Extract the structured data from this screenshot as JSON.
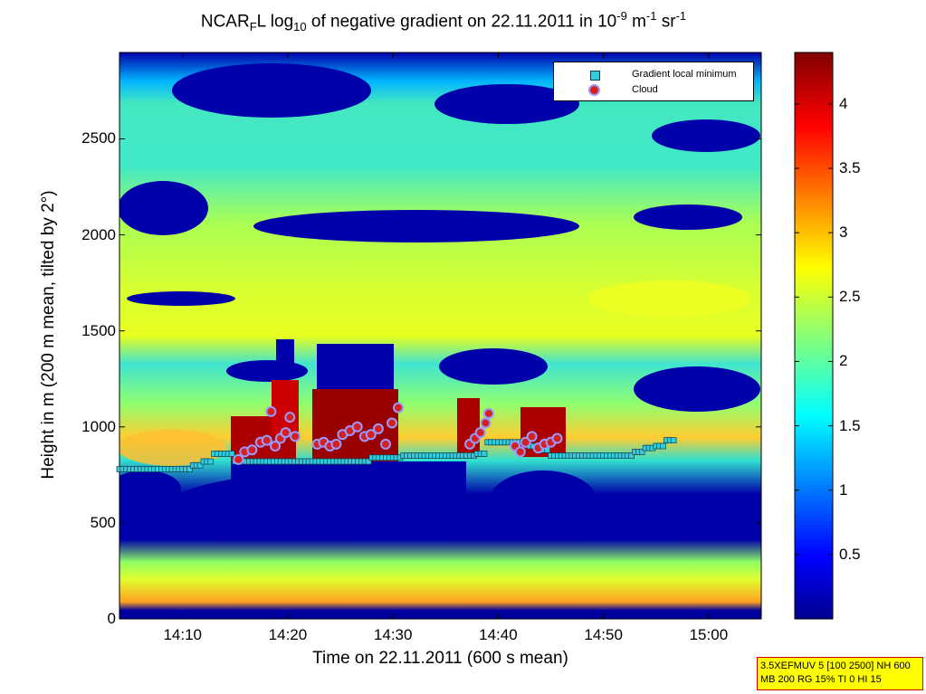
{
  "title": {
    "prefix": "NCAR",
    "sub1": "F",
    "mid1": "L log",
    "sub2": "10",
    "mid2": " of negative gradient on 22.11.2011 in 10",
    "sup1": "-9",
    "mid3": " m",
    "sup2": "-1",
    "mid4": " sr",
    "sup3": "-1"
  },
  "chart_data": {
    "type": "heatmap",
    "title": "NCAR_F L log10 of negative gradient on 22.11.2011 in 10^-9 m^-1 sr^-1",
    "xlabel": "Time on 22.11.2011 (600 s mean)",
    "ylabel": "Height in m (200 m mean, tilted by 2°)",
    "x_ticks": [
      "14:10",
      "14:20",
      "14:30",
      "14:40",
      "14:50",
      "15:00"
    ],
    "x_tick_minutes": [
      850,
      860,
      870,
      880,
      890,
      900
    ],
    "xlim_minutes": [
      844,
      905
    ],
    "y_ticks": [
      "0",
      "500",
      "1000",
      "1500",
      "2000",
      "2500"
    ],
    "ylim": [
      0,
      2950
    ],
    "colorbar": {
      "colormap": "jet",
      "range": [
        0,
        4.4
      ],
      "ticks": [
        "0.5",
        "1",
        "1.5",
        "2",
        "2.5",
        "3",
        "3.5",
        "4"
      ]
    },
    "legend_position": "top-right",
    "series": [
      {
        "name": "Gradient local minimum",
        "marker": "square",
        "color": "#33ccdd",
        "x_minutes": [
          844,
          845,
          846,
          847,
          848,
          849,
          850,
          851,
          852,
          853,
          854,
          855,
          856,
          857,
          858,
          859,
          860,
          861,
          862,
          863,
          864,
          865,
          866,
          867,
          868,
          869,
          870,
          871,
          872,
          873,
          874,
          875,
          876,
          877,
          878,
          879,
          880,
          881,
          882,
          883,
          884,
          885,
          886,
          887,
          888,
          889,
          890,
          891,
          892,
          893,
          894,
          895,
          896
        ],
        "y": [
          780,
          780,
          780,
          780,
          780,
          780,
          780,
          800,
          820,
          860,
          860,
          820,
          820,
          820,
          820,
          820,
          820,
          820,
          820,
          820,
          820,
          820,
          820,
          820,
          840,
          840,
          840,
          850,
          850,
          850,
          850,
          850,
          850,
          850,
          860,
          920,
          920,
          920,
          920,
          900,
          880,
          850,
          850,
          850,
          850,
          850,
          850,
          850,
          850,
          870,
          890,
          900,
          930
        ]
      },
      {
        "name": "Cloud",
        "marker": "circle",
        "color": "#d42020",
        "x_minutes": [
          855.3,
          855.9,
          856.6,
          857.4,
          858.0,
          858.4,
          858.8,
          859.3,
          859.8,
          860.2,
          860.7,
          862.8,
          863.4,
          864.0,
          864.6,
          865.2,
          865.9,
          866.6,
          867.3,
          867.9,
          868.6,
          869.3,
          869.9,
          870.5,
          877.3,
          877.8,
          878.3,
          878.8,
          879.1,
          881.6,
          882.1,
          882.6,
          883.2,
          883.8,
          884.4,
          885.0,
          885.6
        ],
        "y": [
          830,
          870,
          880,
          920,
          930,
          1080,
          900,
          940,
          970,
          1050,
          950,
          910,
          920,
          900,
          910,
          960,
          980,
          1000,
          950,
          960,
          990,
          910,
          1020,
          1100,
          910,
          940,
          970,
          1020,
          1070,
          900,
          870,
          920,
          950,
          890,
          910,
          920,
          940
        ]
      }
    ]
  },
  "legend": {
    "item1": "Gradient local minimum",
    "item2": "Cloud"
  },
  "infobox": {
    "line1": "3.5XEFMUV 5 [100 2500] NH 600",
    "line2": "MB 200 RG 15% TI 0 HI 15"
  },
  "colors": {
    "marker_fill_square": "#33ccdd",
    "marker_fill_circle": "#d42020",
    "marker_edge_circle": "#9999ff",
    "infobox_bg": "#ffff00",
    "infobox_border": "#d00000"
  }
}
